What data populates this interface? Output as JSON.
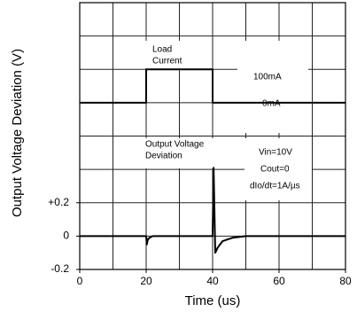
{
  "chart_data": {
    "type": "line",
    "xlabel": "Time (us)",
    "ylabel": "Output Voltage Deviation (V)",
    "xlim": [
      0,
      80
    ],
    "ylim": [
      -0.2,
      1.4
    ],
    "y2lim": [
      -500,
      300
    ],
    "xticks": [
      0,
      20,
      40,
      60,
      80
    ],
    "yticks": [
      -0.2,
      0,
      {
        "value": 0.2,
        "label": "+0.2"
      }
    ],
    "xgrid": [
      10,
      20,
      30,
      40,
      50,
      60,
      70
    ],
    "ygrid": [
      0,
      0.2,
      0.4,
      0.6,
      0.8,
      1.0,
      1.2
    ],
    "grid": true,
    "series": [
      {
        "name": "Load Current",
        "color": "#000000",
        "axis": "y2",
        "x": [
          0,
          20,
          20,
          40,
          40,
          80
        ],
        "values": [
          0,
          0,
          100,
          100,
          0,
          0
        ]
      },
      {
        "name": "Output Voltage Deviation",
        "color": "#000000",
        "x": [
          0,
          20,
          20.2,
          20.5,
          21,
          22,
          40,
          40.3,
          40.8,
          41.5,
          43,
          46,
          50,
          80
        ],
        "values": [
          0,
          0,
          -0.05,
          -0.02,
          -0.01,
          0,
          0,
          0.41,
          -0.1,
          -0.07,
          -0.03,
          -0.01,
          0,
          0
        ]
      }
    ],
    "annotations": [
      "Load",
      "Current",
      "100mA",
      "0mA",
      "Output Voltage",
      "Deviation",
      "Vin=10V",
      "Cout=0",
      "dIo/dt=1A/µs"
    ]
  }
}
